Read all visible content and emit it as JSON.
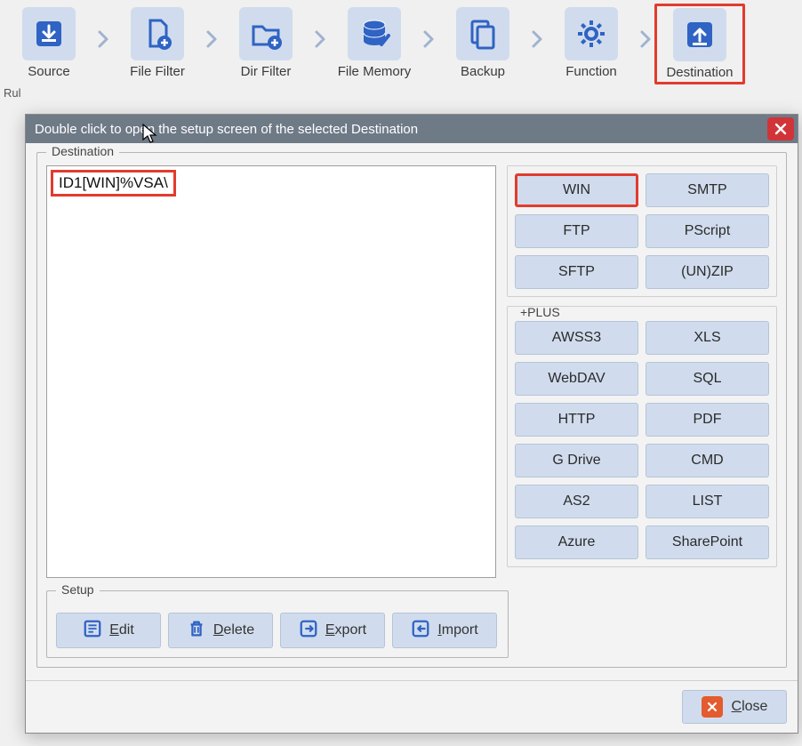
{
  "colors": {
    "accent_bg": "#d0dced",
    "accent_icon": "#2f63c4",
    "highlight_border": "#e23b2e",
    "titlebar_bg": "#6f7a87",
    "close_red": "#d13438",
    "close_orange": "#e35b2e",
    "panel_bg": "#f3f3f3"
  },
  "stepper": {
    "items": [
      {
        "label": "Source",
        "icon": "download"
      },
      {
        "label": "File Filter",
        "icon": "file-plus"
      },
      {
        "label": "Dir Filter",
        "icon": "folder-plus"
      },
      {
        "label": "File Memory",
        "icon": "db-check"
      },
      {
        "label": "Backup",
        "icon": "files"
      },
      {
        "label": "Function",
        "icon": "gear"
      },
      {
        "label": "Destination",
        "icon": "upload",
        "highlighted": true
      }
    ]
  },
  "behind_text": "Rul",
  "modal": {
    "title": "Double click to open the setup screen of the selected Destination",
    "destination_group_label": "Destination",
    "list_items": [
      "ID1[WIN]%VSA\\"
    ],
    "basic_buttons": [
      {
        "label": "WIN",
        "highlighted": true
      },
      {
        "label": "SMTP"
      },
      {
        "label": "FTP"
      },
      {
        "label": "PScript"
      },
      {
        "label": "SFTP"
      },
      {
        "label": "(UN)ZIP"
      }
    ],
    "plus_group_label": "+PLUS",
    "plus_buttons": [
      {
        "label": "AWSS3"
      },
      {
        "label": "XLS"
      },
      {
        "label": "WebDAV"
      },
      {
        "label": "SQL"
      },
      {
        "label": "HTTP"
      },
      {
        "label": "PDF"
      },
      {
        "label": "G Drive"
      },
      {
        "label": "CMD"
      },
      {
        "label": "AS2"
      },
      {
        "label": "LIST"
      },
      {
        "label": "Azure"
      },
      {
        "label": "SharePoint"
      }
    ],
    "setup_group_label": "Setup",
    "setup_buttons": [
      {
        "label": "Edit",
        "underline_first": true,
        "icon": "edit"
      },
      {
        "label": "Delete",
        "underline_first": true,
        "icon": "trash"
      },
      {
        "label": "Export",
        "underline_first": true,
        "icon": "export"
      },
      {
        "label": "Import",
        "underline_first": true,
        "icon": "import"
      }
    ],
    "close_label": "Close"
  }
}
